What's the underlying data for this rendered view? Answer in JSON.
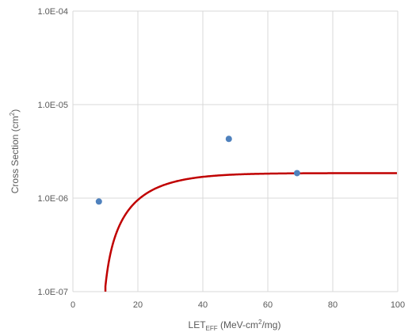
{
  "chart_data": {
    "type": "scatter",
    "x_axis": {
      "label_main": "LET",
      "label_sub": "EFF",
      "label_rest_a": " (MeV-cm",
      "label_sup": "2",
      "label_rest_b": "/mg)",
      "range": [
        0,
        100
      ],
      "ticks": [
        0,
        20,
        40,
        60,
        80,
        100
      ],
      "tick_labels": [
        "0",
        "20",
        "40",
        "60",
        "80",
        "100"
      ]
    },
    "y_axis": {
      "label_main": "Cross Section (cm",
      "label_sup": "2",
      "label_end": ")",
      "scale": "log",
      "range": [
        1e-07,
        0.0001
      ],
      "ticks": [
        1e-07,
        1e-06,
        1e-05,
        0.0001
      ],
      "tick_labels": [
        "1.0E-07",
        "1.0E-06",
        "1.0E-05",
        "1.0E-04"
      ]
    },
    "grid": true,
    "points": [
      {
        "x": 8,
        "y": 9.2e-07
      },
      {
        "x": 48,
        "y": 4.3e-06
      },
      {
        "x": 69,
        "y": 1.85e-06
      }
    ],
    "fit_curve": {
      "model": "weibull",
      "sigma_sat": 1.85e-06,
      "let_threshold": 8.5,
      "width": 15,
      "shape": 1.2,
      "x_end": 100
    },
    "colors": {
      "points": "#4f81bd",
      "curve": "#c00000",
      "grid": "#d9d9d9",
      "axis_text": "#595959"
    }
  }
}
